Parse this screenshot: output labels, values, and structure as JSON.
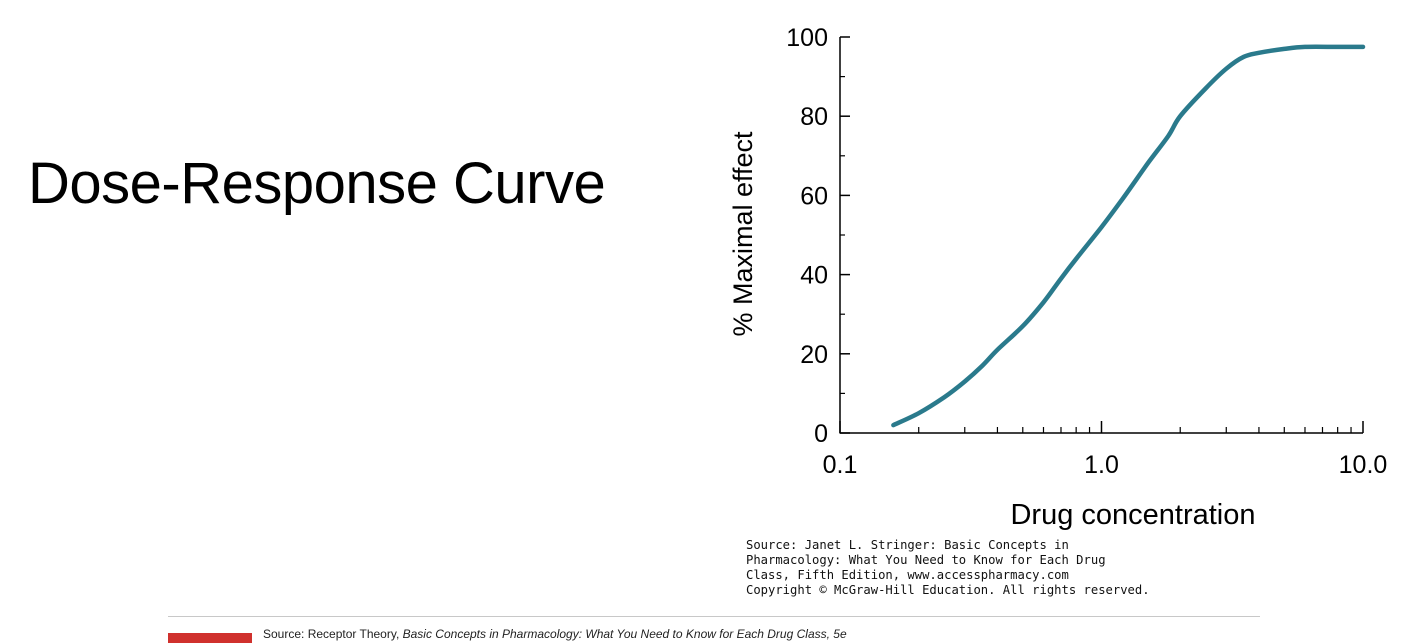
{
  "title": "Dose-Response Curve",
  "source_note": [
    "Source: Janet L. Stringer: Basic Concepts in",
    "Pharmacology: What You Need to Know for Each Drug",
    "Class, Fifth Edition, www.accesspharmacy.com",
    "Copyright © McGraw-Hill Education. All rights reserved."
  ],
  "footer": {
    "source_prefix": "Source: Receptor Theory, ",
    "source_book": "Basic Concepts in Pharmacology: What You Need to Know for Each Drug Class, 5e"
  },
  "colors": {
    "curve": "#2a7a8c",
    "axis": "#000000",
    "footer_logo": "#d0312d"
  },
  "chart_data": {
    "type": "line",
    "title": "",
    "xlabel": "Drug concentration",
    "ylabel": "% Maximal effect",
    "xscale": "log",
    "xlim": [
      0.1,
      10.0
    ],
    "ylim": [
      0,
      100
    ],
    "xticks": [
      0.1,
      1.0,
      10.0
    ],
    "xtick_labels": [
      "0.1",
      "1.0",
      "10.0"
    ],
    "yticks": [
      0,
      20,
      40,
      60,
      80,
      100
    ],
    "ytick_labels": [
      "0",
      "20",
      "40",
      "60",
      "80",
      "100"
    ],
    "grid": false,
    "series": [
      {
        "x": [
          0.16,
          0.2,
          0.25,
          0.3,
          0.35,
          0.4,
          0.5,
          0.6,
          0.7,
          0.8,
          1.0,
          1.2,
          1.5,
          1.8,
          2.0,
          2.5,
          3.0,
          3.5,
          4.0,
          5.0,
          6.0,
          8.0,
          10.0
        ],
        "y": [
          2,
          5,
          9,
          13,
          17,
          21,
          27,
          33,
          39,
          44,
          52,
          59,
          68,
          75,
          80,
          87,
          92,
          95,
          96,
          97,
          97.5,
          97.5,
          97.5
        ]
      }
    ]
  }
}
